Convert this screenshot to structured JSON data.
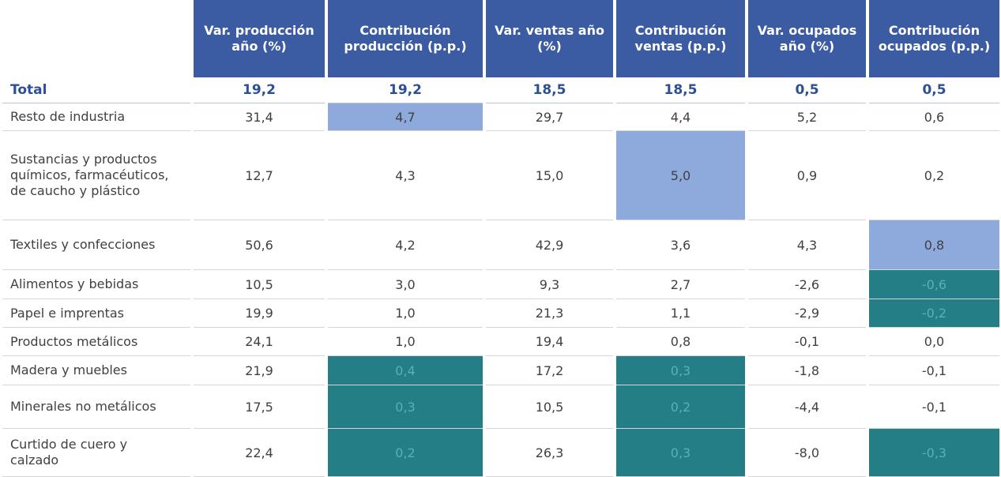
{
  "table": {
    "headers": [
      "Var. producción año (%)",
      "Contribución producción (p.p.)",
      "Var. ventas año (%)",
      "Contribución ventas (p.p.)",
      "Var. ocupados año (%)",
      "Contribución ocupados (p.p.)"
    ],
    "header_color": "#3b5ca3",
    "highlight_colors": {
      "high": "#8eaadc",
      "low": "#237e85"
    },
    "total": {
      "label": "Total",
      "cells": [
        "19,2",
        "19,2",
        "18,5",
        "18,5",
        "0,5",
        "0,5"
      ]
    },
    "rows": [
      {
        "label": "Resto de industria",
        "cells": [
          "31,4",
          "4,7",
          "29,7",
          "4,4",
          "5,2",
          "0,6"
        ],
        "fills": [
          null,
          "high",
          null,
          null,
          null,
          null
        ]
      },
      {
        "label": "Sustancias y productos químicos, farmacéuticos, de caucho y plástico",
        "cells": [
          "12,7",
          "4,3",
          "15,0",
          "5,0",
          "0,9",
          "0,2"
        ],
        "fills": [
          null,
          null,
          null,
          "high",
          null,
          null
        ]
      },
      {
        "label": "Textiles y confecciones",
        "cells": [
          "50,6",
          "4,2",
          "42,9",
          "3,6",
          "4,3",
          "0,8"
        ],
        "fills": [
          null,
          null,
          null,
          null,
          null,
          "high"
        ]
      },
      {
        "label": "Alimentos y bebidas",
        "cells": [
          "10,5",
          "3,0",
          "9,3",
          "2,7",
          "-2,6",
          "-0,6"
        ],
        "fills": [
          null,
          null,
          null,
          null,
          null,
          "low"
        ]
      },
      {
        "label": "Papel e imprentas",
        "cells": [
          "19,9",
          "1,0",
          "21,3",
          "1,1",
          "-2,9",
          "-0,2"
        ],
        "fills": [
          null,
          null,
          null,
          null,
          null,
          "low"
        ]
      },
      {
        "label": "Productos metálicos",
        "cells": [
          "24,1",
          "1,0",
          "19,4",
          "0,8",
          "-0,1",
          "0,0"
        ],
        "fills": [
          null,
          null,
          null,
          null,
          null,
          null
        ]
      },
      {
        "label": "Madera y muebles",
        "cells": [
          "21,9",
          "0,4",
          "17,2",
          "0,3",
          "-1,8",
          "-0,1"
        ],
        "fills": [
          null,
          "low",
          null,
          "low",
          null,
          null
        ]
      },
      {
        "label": "Minerales no metálicos",
        "cells": [
          "17,5",
          "0,3",
          "10,5",
          "0,2",
          "-4,4",
          "-0,1"
        ],
        "fills": [
          null,
          "low",
          null,
          "low",
          null,
          null
        ]
      },
      {
        "label": "Curtido de cuero y calzado",
        "cells": [
          "22,4",
          "0,2",
          "26,3",
          "0,3",
          "-8,0",
          "-0,3"
        ],
        "fills": [
          null,
          "low",
          null,
          "low",
          null,
          "low"
        ]
      }
    ]
  }
}
